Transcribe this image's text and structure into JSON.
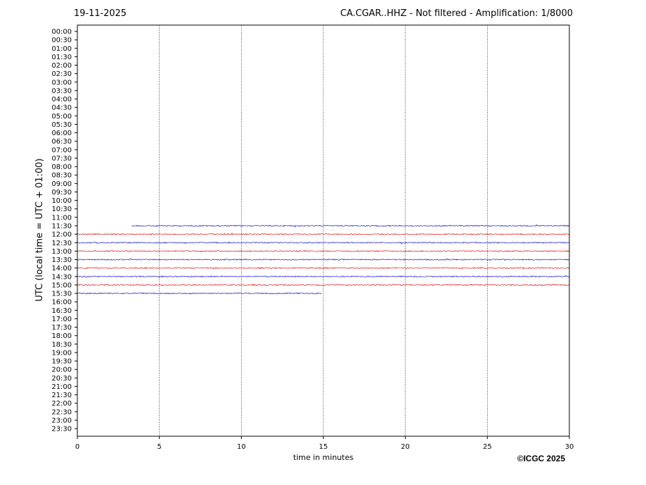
{
  "header": {
    "date": "19-11-2025",
    "title": "CA.CGAR..HHZ - Not filtered - Amplification: 1/8000"
  },
  "footer": {
    "copyright": "©ICGC 2025"
  },
  "chart_data": {
    "type": "line",
    "title": "CA.CGAR..HHZ - Not filtered - Amplification: 1/8000",
    "xlabel": "time in minutes",
    "ylabel": "UTC (local time = UTC + 01:00)",
    "xlim": [
      0,
      30
    ],
    "xticks": [
      0,
      5,
      10,
      15,
      20,
      25,
      30
    ],
    "yticks": [
      "00:00",
      "00:30",
      "01:00",
      "01:30",
      "02:00",
      "02:30",
      "03:00",
      "03:30",
      "04:00",
      "04:30",
      "05:00",
      "05:30",
      "06:00",
      "06:30",
      "07:00",
      "07:30",
      "08:00",
      "08:30",
      "09:00",
      "09:30",
      "10:00",
      "10:30",
      "11:00",
      "11:30",
      "12:00",
      "12:30",
      "13:00",
      "13:30",
      "14:00",
      "14:30",
      "15:00",
      "15:30",
      "16:00",
      "16:30",
      "17:00",
      "17:30",
      "18:00",
      "18:30",
      "19:00",
      "19:30",
      "20:00",
      "20:30",
      "21:00",
      "21:30",
      "22:00",
      "22:30",
      "23:00",
      "23:30"
    ],
    "grid": "vertical dotted at 5-minute ticks",
    "colors": {
      "odd_trace": "#0000cc",
      "even_trace": "#dd0000"
    },
    "traces": [
      {
        "row": "11:30",
        "start_min": 3.3,
        "end_min": 30,
        "color": "#0000cc"
      },
      {
        "row": "12:00",
        "start_min": 0,
        "end_min": 30,
        "color": "#dd0000"
      },
      {
        "row": "12:30",
        "start_min": 0,
        "end_min": 30,
        "color": "#0000cc"
      },
      {
        "row": "13:00",
        "start_min": 0,
        "end_min": 30,
        "color": "#dd0000"
      },
      {
        "row": "13:30",
        "start_min": 0,
        "end_min": 30,
        "color": "#0000cc"
      },
      {
        "row": "14:00",
        "start_min": 0,
        "end_min": 30,
        "color": "#dd0000"
      },
      {
        "row": "14:30",
        "start_min": 0,
        "end_min": 30,
        "color": "#0000cc"
      },
      {
        "row": "15:00",
        "start_min": 0,
        "end_min": 30,
        "color": "#dd0000"
      },
      {
        "row": "15:30",
        "start_min": 0,
        "end_min": 14.9,
        "color": "#0000cc"
      }
    ]
  }
}
